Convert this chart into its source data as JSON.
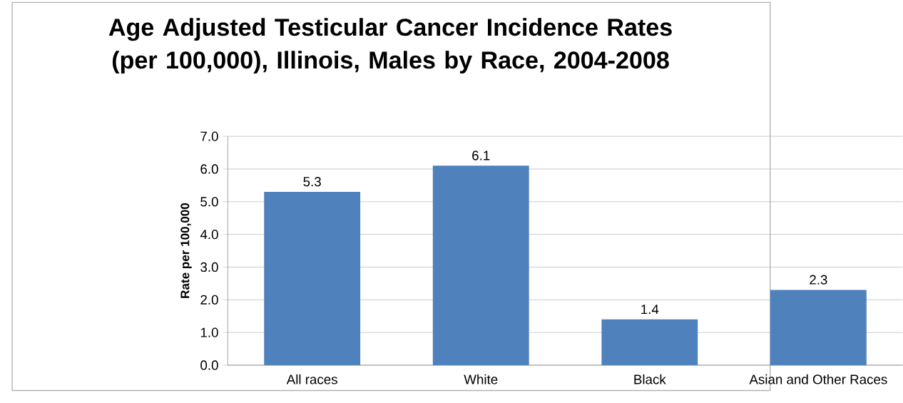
{
  "chart_data": {
    "type": "bar",
    "title": "Age Adjusted Testicular Cancer Incidence Rates (per 100,000), Illinois, Males by Race, 2004-2008",
    "ylabel": "Rate per 100,000",
    "categories": [
      "All races",
      "White",
      "Black",
      "Asian and Other Races"
    ],
    "values": [
      5.3,
      6.1,
      1.4,
      2.3
    ],
    "color": "#4f81bd",
    "data_labels": true,
    "ylim": [
      0,
      7
    ],
    "yticks": [
      {
        "value": 0,
        "label": "0.0"
      },
      {
        "value": 1,
        "label": "1.0"
      },
      {
        "value": 2,
        "label": "2.0"
      },
      {
        "value": 3,
        "label": "3.0"
      },
      {
        "value": 4,
        "label": "4.0"
      },
      {
        "value": 5,
        "label": "5.0"
      },
      {
        "value": 6,
        "label": "6.0"
      },
      {
        "value": 7,
        "label": "7.0"
      }
    ],
    "grid": "y"
  }
}
